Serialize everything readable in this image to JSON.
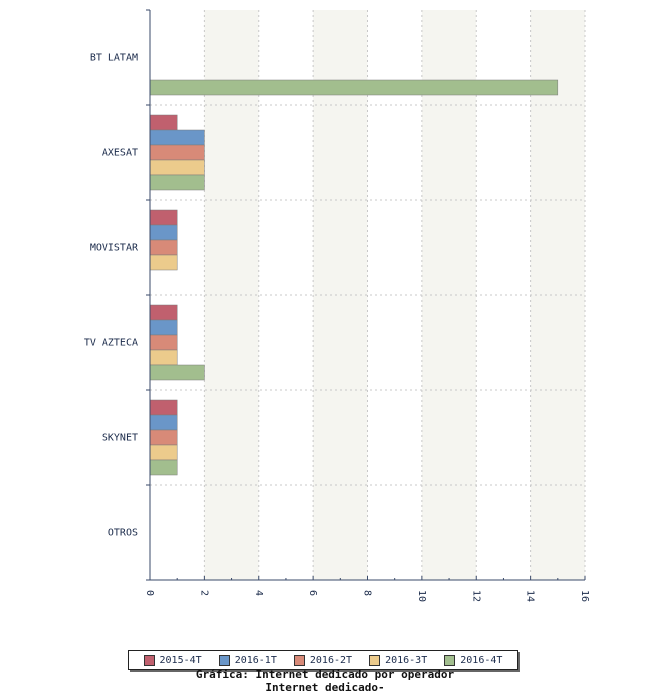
{
  "chart_data": {
    "type": "bar",
    "orientation": "horizontal",
    "title": "Gráfica: Internet dedicado por operador",
    "subtitle": "Internet dedicado-",
    "categories": [
      "BT LATAM",
      "AXESAT",
      "MOVISTAR",
      "TV AZTECA",
      "SKYNET",
      "OTROS"
    ],
    "series": [
      {
        "name": "2015-4T",
        "color": "#c0606e",
        "values": [
          0,
          1,
          1,
          1,
          1,
          0
        ]
      },
      {
        "name": "2016-1T",
        "color": "#6a96c8",
        "values": [
          0,
          2,
          1,
          1,
          1,
          0
        ]
      },
      {
        "name": "2016-2T",
        "color": "#d88a78",
        "values": [
          0,
          2,
          1,
          1,
          1,
          0
        ]
      },
      {
        "name": "2016-3T",
        "color": "#eccb8c",
        "values": [
          0,
          2,
          1,
          1,
          1,
          0
        ]
      },
      {
        "name": "2016-4T",
        "color": "#a2be8e",
        "values": [
          15,
          2,
          0,
          2,
          1,
          0
        ]
      }
    ],
    "xlim": [
      0,
      16
    ],
    "xticks": [
      0,
      2,
      4,
      6,
      8,
      10,
      12,
      14,
      16
    ],
    "grid": true,
    "legend_position": "bottom"
  }
}
